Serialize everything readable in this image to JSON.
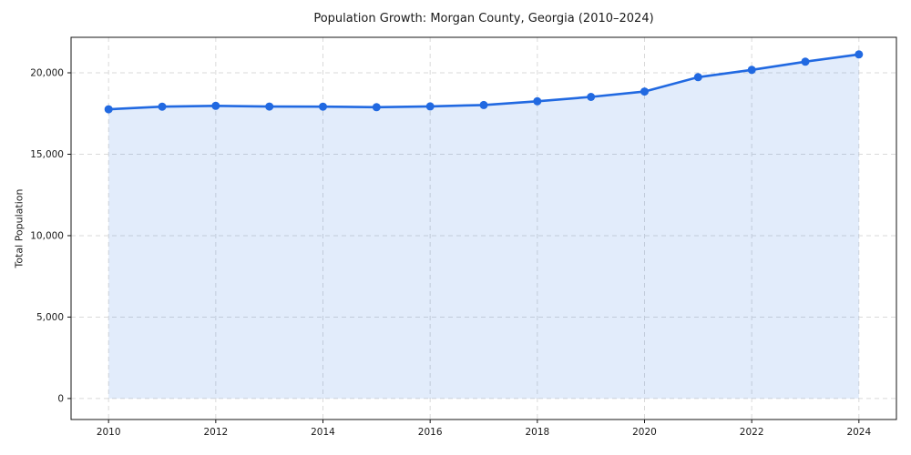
{
  "chart_data": {
    "type": "area",
    "title": "Population Growth: Morgan County, Georgia (2010–2024)",
    "xlabel": "",
    "ylabel": "Total Population",
    "x": [
      2010,
      2011,
      2012,
      2013,
      2014,
      2015,
      2016,
      2017,
      2018,
      2019,
      2020,
      2021,
      2022,
      2023,
      2024
    ],
    "series": [
      {
        "name": "Total Population",
        "values": [
          17760,
          17920,
          17970,
          17930,
          17920,
          17890,
          17940,
          18020,
          18250,
          18520,
          18850,
          19730,
          20180,
          20680,
          21130
        ]
      }
    ],
    "xticks": [
      2010,
      2012,
      2014,
      2016,
      2018,
      2020,
      2022,
      2024
    ],
    "yticks": [
      0,
      5000,
      10000,
      15000,
      20000
    ],
    "ytick_labels": [
      "0",
      "5,000",
      "10,000",
      "15,000",
      "20,000"
    ],
    "xlim": [
      2009.3,
      2024.7
    ],
    "ylim": [
      -1290,
      22180
    ],
    "grid": true,
    "legend": "none",
    "colors": {
      "line": "#2169e1",
      "marker": "#2169e1",
      "fill": "rgba(33, 105, 225, 0.13)",
      "grid": "#d9d9d9",
      "spine": "#141414",
      "text": "#1a1a1a"
    }
  }
}
